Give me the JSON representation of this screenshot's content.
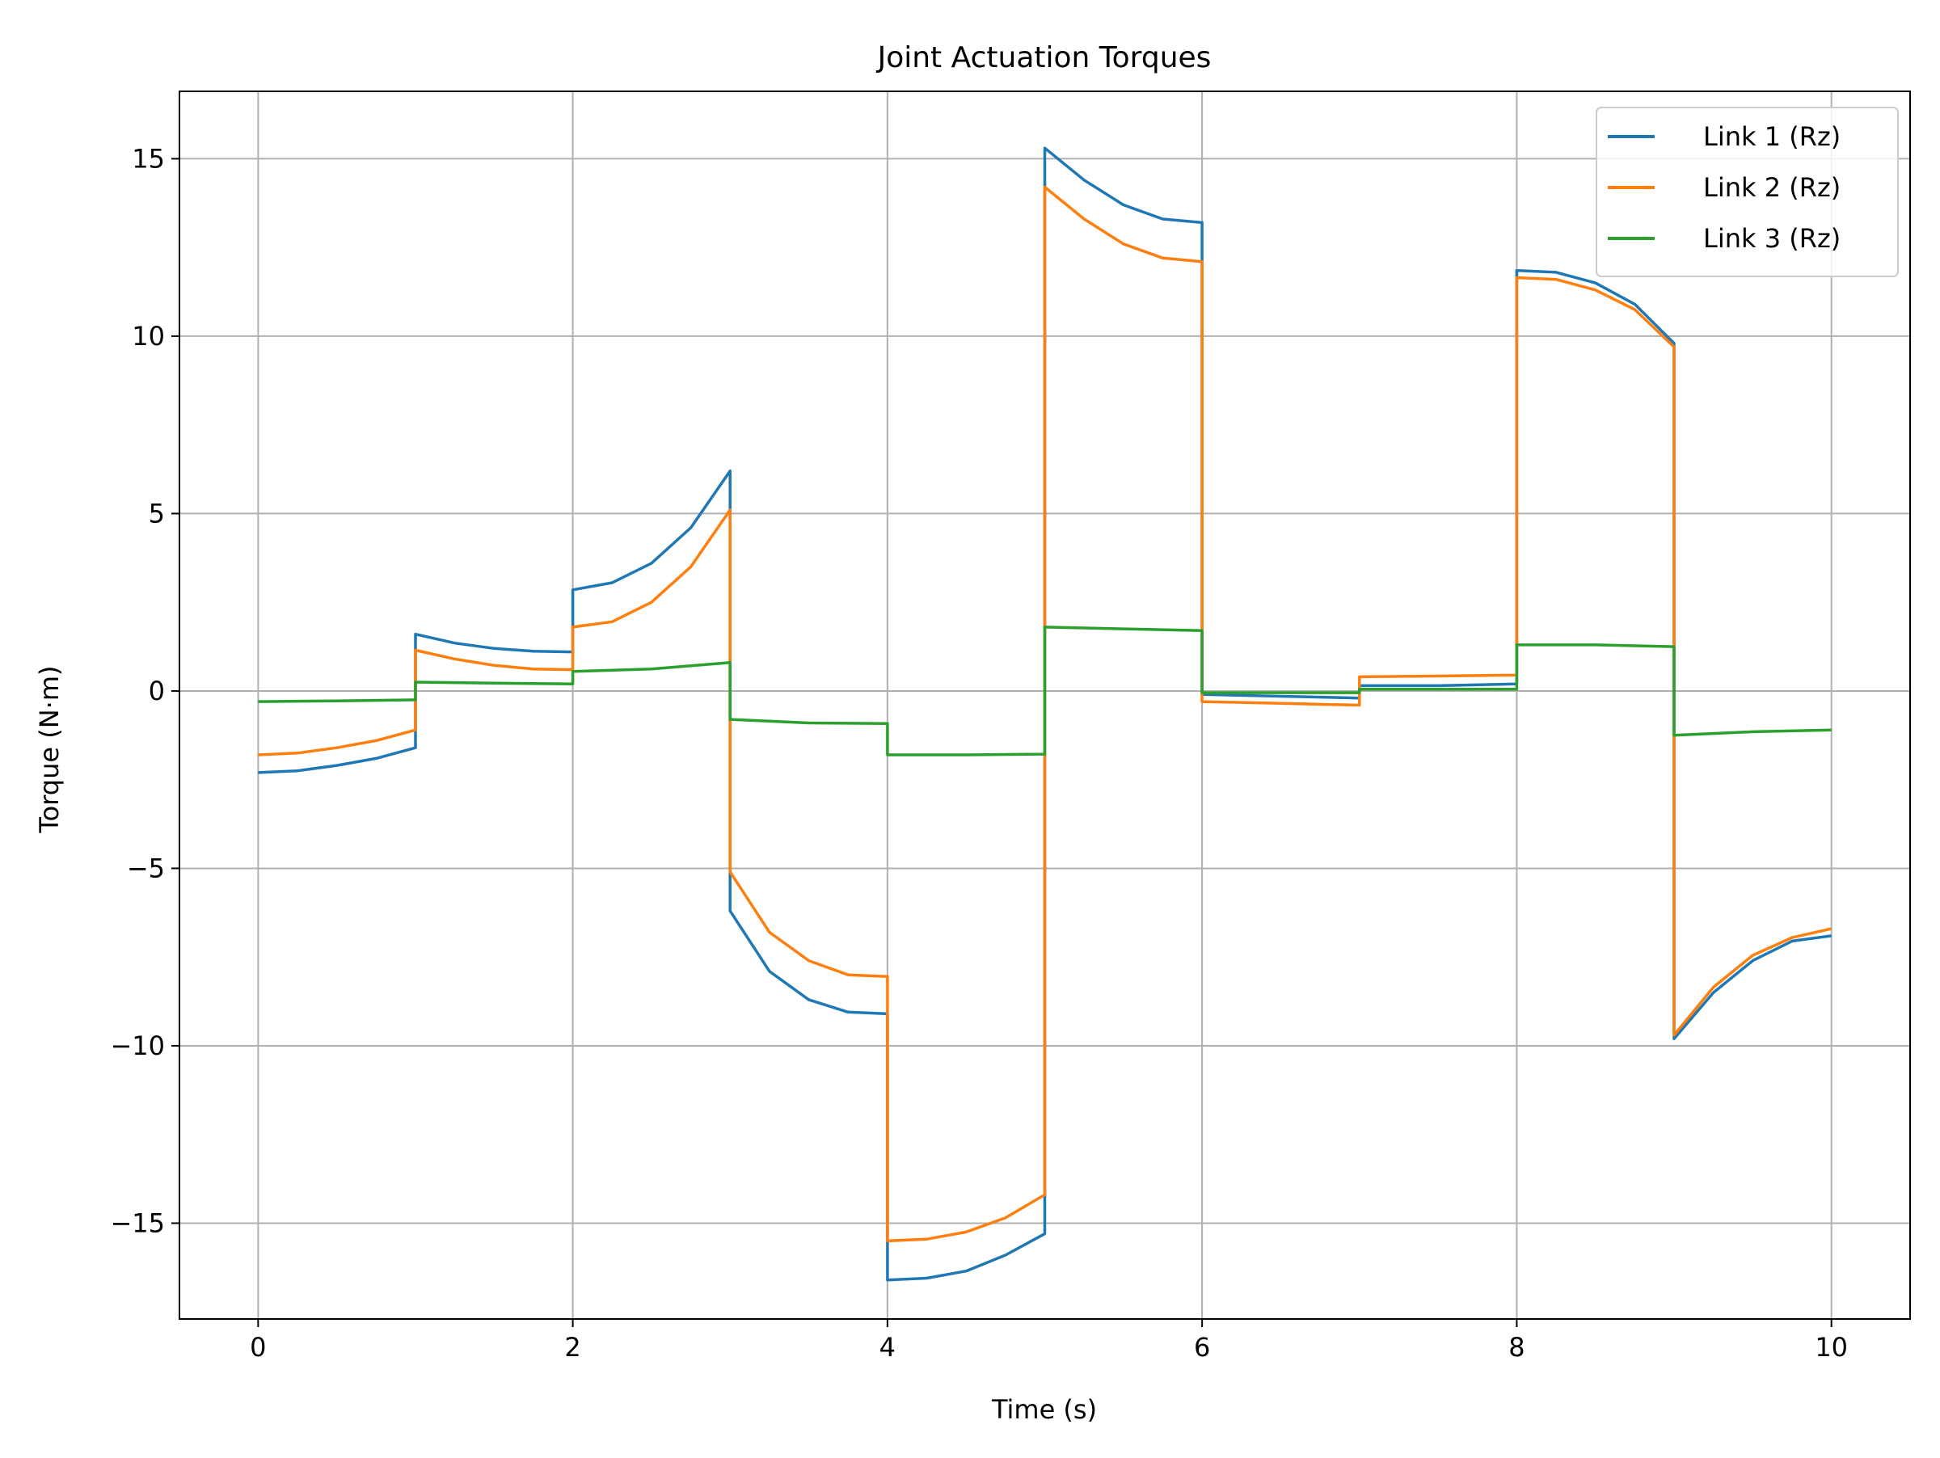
{
  "chart_data": {
    "type": "line",
    "title": "Joint Actuation Torques",
    "xlabel": "Time (s)",
    "ylabel": "Torque (N·m)",
    "xlim": [
      -0.5,
      10.5
    ],
    "ylim": [
      -17.7,
      16.9
    ],
    "xticks": [
      0,
      2,
      4,
      6,
      8,
      10
    ],
    "xtick_labels": [
      "0",
      "2",
      "4",
      "6",
      "8",
      "10"
    ],
    "yticks": [
      -15,
      -10,
      -5,
      0,
      5,
      10,
      15
    ],
    "ytick_labels": [
      "−15",
      "−10",
      "−5",
      "0",
      "5",
      "10",
      "15"
    ],
    "grid": true,
    "legend_position": "top-right",
    "series": [
      {
        "name": "Link 1 (Rz)",
        "color": "#1f77b4",
        "x": [
          0,
          0.25,
          0.5,
          0.75,
          1.0,
          1.0,
          1.25,
          1.5,
          1.75,
          2.0,
          2.0,
          2.25,
          2.5,
          2.75,
          3.0,
          3.0,
          3.25,
          3.5,
          3.75,
          4.0,
          4.0,
          4.25,
          4.5,
          4.75,
          5.0,
          5.0,
          5.25,
          5.5,
          5.75,
          6.0,
          6.0,
          6.5,
          7.0,
          7.0,
          7.5,
          8.0,
          8.0,
          8.25,
          8.5,
          8.75,
          9.0,
          9.0,
          9.25,
          9.5,
          9.75,
          10.0
        ],
        "y": [
          -2.3,
          -2.25,
          -2.1,
          -1.9,
          -1.6,
          1.6,
          1.35,
          1.2,
          1.12,
          1.1,
          2.85,
          3.05,
          3.6,
          4.6,
          6.2,
          -6.2,
          -7.9,
          -8.7,
          -9.05,
          -9.1,
          -16.6,
          -16.55,
          -16.35,
          -15.9,
          -15.3,
          15.3,
          14.4,
          13.7,
          13.3,
          13.2,
          -0.1,
          -0.15,
          -0.2,
          0.15,
          0.15,
          0.2,
          11.85,
          11.8,
          11.5,
          10.9,
          9.8,
          -9.8,
          -8.5,
          -7.6,
          -7.05,
          -6.9
        ]
      },
      {
        "name": "Link 2 (Rz)",
        "color": "#ff7f0e",
        "x": [
          0,
          0.25,
          0.5,
          0.75,
          1.0,
          1.0,
          1.25,
          1.5,
          1.75,
          2.0,
          2.0,
          2.25,
          2.5,
          2.75,
          3.0,
          3.0,
          3.25,
          3.5,
          3.75,
          4.0,
          4.0,
          4.25,
          4.5,
          4.75,
          5.0,
          5.0,
          5.25,
          5.5,
          5.75,
          6.0,
          6.0,
          6.5,
          7.0,
          7.0,
          7.5,
          8.0,
          8.0,
          8.25,
          8.5,
          8.75,
          9.0,
          9.0,
          9.25,
          9.5,
          9.75,
          10.0
        ],
        "y": [
          -1.8,
          -1.75,
          -1.6,
          -1.4,
          -1.1,
          1.15,
          0.9,
          0.72,
          0.62,
          0.6,
          1.8,
          1.95,
          2.5,
          3.5,
          5.1,
          -5.1,
          -6.8,
          -7.6,
          -8.0,
          -8.05,
          -15.5,
          -15.45,
          -15.25,
          -14.85,
          -14.2,
          14.2,
          13.3,
          12.6,
          12.2,
          12.1,
          -0.3,
          -0.35,
          -0.4,
          0.4,
          0.42,
          0.45,
          11.65,
          11.6,
          11.3,
          10.75,
          9.7,
          -9.7,
          -8.35,
          -7.45,
          -6.95,
          -6.7
        ]
      },
      {
        "name": "Link 3 (Rz)",
        "color": "#2ca02c",
        "x": [
          0,
          0.5,
          1.0,
          1.0,
          1.5,
          2.0,
          2.0,
          2.5,
          3.0,
          3.0,
          3.5,
          4.0,
          4.0,
          4.5,
          5.0,
          5.0,
          5.5,
          6.0,
          6.0,
          6.5,
          7.0,
          7.0,
          7.5,
          8.0,
          8.0,
          8.5,
          9.0,
          9.0,
          9.5,
          10.0
        ],
        "y": [
          -0.3,
          -0.28,
          -0.25,
          0.25,
          0.22,
          0.2,
          0.55,
          0.62,
          0.8,
          -0.8,
          -0.9,
          -0.92,
          -1.8,
          -1.8,
          -1.78,
          1.8,
          1.75,
          1.7,
          -0.05,
          -0.05,
          -0.05,
          0.05,
          0.05,
          0.05,
          1.3,
          1.3,
          1.25,
          -1.25,
          -1.15,
          -1.1
        ]
      }
    ]
  }
}
